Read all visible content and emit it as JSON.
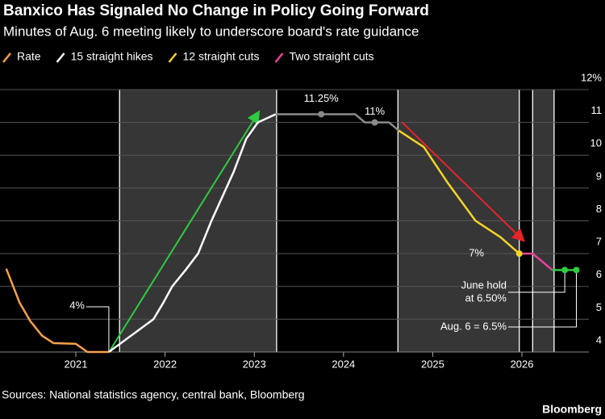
{
  "chart_data": {
    "type": "line",
    "title": "Banxico Has Signaled No Change in Policy Going Forward",
    "subtitle": "Minutes of Aug. 6 meeting likely to underscore board's rate guidance",
    "source": "Sources: National statistics agency, central bank, Bloomberg",
    "brand": "Bloomberg",
    "xlim": [
      2020.15,
      2026.75
    ],
    "xticks": [
      2021,
      2022,
      2023,
      2024,
      2025,
      2026
    ],
    "ylim": [
      4,
      12
    ],
    "yticks": [
      4,
      5,
      6,
      7,
      8,
      9,
      10,
      11,
      {
        "value": 12,
        "label": "12%"
      }
    ],
    "grid": true,
    "shaded_ranges": [
      [
        2021.49,
        2023.25
      ],
      [
        2024.61,
        2025.97
      ],
      [
        2026.12,
        2026.36
      ]
    ],
    "series": [
      {
        "name": "Rate",
        "color": "#f7a04a",
        "x": [
          2020.22,
          2020.37,
          2020.49,
          2020.62,
          2020.75,
          2021.0,
          2021.13,
          2021.37
        ],
        "values": [
          6.54,
          5.5,
          4.94,
          4.5,
          4.27,
          4.25,
          4.0,
          4.0
        ]
      },
      {
        "name": "15 straight hikes",
        "color": "#ffffff",
        "x": [
          2021.37,
          2021.87,
          2021.98,
          2022.08,
          2022.23,
          2022.37,
          2022.52,
          2022.77,
          2022.91,
          2023.04,
          2023.24
        ],
        "values": [
          4.0,
          5.0,
          5.5,
          6.0,
          6.5,
          7.0,
          8.0,
          9.5,
          10.5,
          11.0,
          11.25
        ]
      },
      {
        "color": "#8a8a8a",
        "x": [
          2023.24,
          2024.13,
          2024.24,
          2024.51,
          2024.62
        ],
        "values": [
          11.25,
          11.25,
          11.0,
          11.0,
          10.75
        ]
      },
      {
        "name": "12 straight cuts",
        "color": "#f5d327",
        "x": [
          2024.62,
          2024.9,
          2025.17,
          2025.48,
          2025.76,
          2025.97
        ],
        "values": [
          10.75,
          10.25,
          9.15,
          8.0,
          7.5,
          7.0
        ]
      },
      {
        "name": "Two straight cuts",
        "color": "#e8449a",
        "x": [
          2025.97,
          2026.12,
          2026.34
        ],
        "values": [
          7.0,
          7.0,
          6.5
        ]
      },
      {
        "color": "#2ecc40",
        "x": [
          2026.34,
          2026.61
        ],
        "values": [
          6.5,
          6.5
        ]
      }
    ],
    "annotations": [
      {
        "lines": [
          "4%"
        ],
        "x": 2021.37,
        "y": 4.0
      },
      {
        "lines": [
          "11.25%"
        ],
        "x": 2023.75,
        "y": 11.25,
        "marker_color": "#8a8a8a"
      },
      {
        "lines": [
          "11%"
        ],
        "x": 2024.35,
        "y": 11.0,
        "marker_color": "#8a8a8a"
      },
      {
        "lines": [
          "7%"
        ],
        "x": 2025.97,
        "y": 7.0,
        "marker_color": "#f5d327"
      },
      {
        "lines": [
          "June hold",
          "at 6.50%"
        ],
        "x": 2026.48,
        "y": 6.5,
        "marker_color": "#2ecc40"
      },
      {
        "lines": [
          "Aug. 6 = 6.5%"
        ],
        "x": 2026.61,
        "y": 6.5,
        "marker_color": "#2ecc40"
      }
    ]
  }
}
